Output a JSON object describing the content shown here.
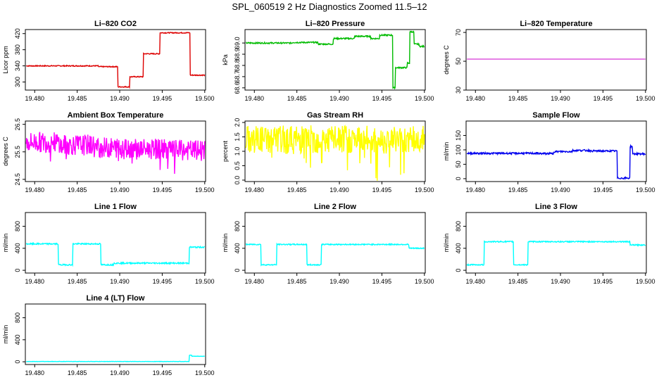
{
  "title": "SPL_060519  2 Hz Diagnostics Zoomed 11.5–12",
  "chart_data": [
    {
      "type": "line",
      "title": "Li–820 CO2",
      "ylabel": "Licor ppm",
      "color": "#dd0000",
      "xlim": [
        19.4789,
        19.5001
      ],
      "ylim": [
        280,
        430
      ],
      "xticks": [
        "19.480",
        "19.485",
        "19.490",
        "19.495",
        "19.500"
      ],
      "yticks": [
        {
          "v": 300,
          "label": "300"
        },
        {
          "v": 340,
          "label": "340"
        },
        {
          "v": 380,
          "label": "380"
        },
        {
          "v": 420,
          "label": "420"
        }
      ],
      "noise": 1.2,
      "steps": [
        {
          "x": 19.479,
          "y": 340
        },
        {
          "x": 19.4875,
          "y": 338
        },
        {
          "x": 19.4898,
          "y": 288
        },
        {
          "x": 19.4912,
          "y": 313
        },
        {
          "x": 19.4928,
          "y": 370
        },
        {
          "x": 19.4947,
          "y": 422
        },
        {
          "x": 19.4983,
          "y": 317
        }
      ]
    },
    {
      "type": "line",
      "title": "Li–820 Pressure",
      "ylabel": "kPa",
      "color": "#00bb00",
      "xlim": [
        19.4789,
        19.5001
      ],
      "ylim": [
        68.58,
        69.12
      ],
      "xticks": [
        "19.480",
        "19.485",
        "19.490",
        "19.495",
        "19.500"
      ],
      "yticks": [
        {
          "v": 68.6,
          "label": "68.6"
        },
        {
          "v": 68.7,
          "label": "68.7"
        },
        {
          "v": 68.8,
          "label": "68.8"
        },
        {
          "v": 68.9,
          "label": "68.9"
        },
        {
          "v": 69.0,
          "label": "69.0"
        }
      ],
      "noise": 0.006,
      "steps": [
        {
          "x": 19.479,
          "y": 69.0
        },
        {
          "x": 19.4845,
          "y": 69.005
        },
        {
          "x": 19.4875,
          "y": 68.99
        },
        {
          "x": 19.4893,
          "y": 69.04
        },
        {
          "x": 19.4918,
          "y": 69.06
        },
        {
          "x": 19.4937,
          "y": 69.04
        },
        {
          "x": 19.4947,
          "y": 69.07
        },
        {
          "x": 19.4963,
          "y": 68.6
        },
        {
          "x": 19.4966,
          "y": 68.78
        },
        {
          "x": 19.498,
          "y": 68.82
        },
        {
          "x": 19.4983,
          "y": 69.1
        },
        {
          "x": 19.4988,
          "y": 68.99
        },
        {
          "x": 19.4994,
          "y": 68.97
        }
      ]
    },
    {
      "type": "line",
      "title": "Li–820 Temperature",
      "ylabel": "degrees C",
      "color": "#cc00cc",
      "xlim": [
        19.4789,
        19.5001
      ],
      "ylim": [
        30,
        72
      ],
      "xticks": [
        "19.480",
        "19.485",
        "19.490",
        "19.495",
        "19.500"
      ],
      "yticks": [
        {
          "v": 30,
          "label": "30"
        },
        {
          "v": 50,
          "label": "50"
        },
        {
          "v": 70,
          "label": "70"
        }
      ],
      "noise": 0,
      "steps": [
        {
          "x": 19.479,
          "y": 51.5
        }
      ]
    },
    {
      "type": "line",
      "title": "Ambient Box Temperature",
      "ylabel": "degrees C",
      "color": "#ff00ff",
      "xlim": [
        19.4789,
        19.5001
      ],
      "ylim": [
        24.42,
        26.62
      ],
      "xticks": [
        "19.480",
        "19.485",
        "19.490",
        "19.495",
        "19.500"
      ],
      "yticks": [
        {
          "v": 24.5,
          "label": "24.5"
        },
        {
          "v": 25.5,
          "label": "25.5"
        },
        {
          "v": 26.5,
          "label": "26.5"
        }
      ],
      "noise": 0.38,
      "spikes": 0.6,
      "steps": [
        {
          "x": 19.479,
          "y": 25.85
        },
        {
          "x": 19.483,
          "y": 25.75
        },
        {
          "x": 19.487,
          "y": 25.65
        },
        {
          "x": 19.492,
          "y": 25.6
        },
        {
          "x": 19.496,
          "y": 25.55
        }
      ]
    },
    {
      "type": "line",
      "title": "Gas Stream RH",
      "ylabel": "percent",
      "color": "#ffff00",
      "xlim": [
        19.4789,
        19.5001
      ],
      "ylim": [
        -0.05,
        2.05
      ],
      "xticks": [
        "19.480",
        "19.485",
        "19.490",
        "19.495",
        "19.500"
      ],
      "yticks": [
        {
          "v": 0.0,
          "label": "0.0"
        },
        {
          "v": 0.5,
          "label": "0.5"
        },
        {
          "v": 1.0,
          "label": "1.0"
        },
        {
          "v": 1.5,
          "label": "1.5"
        },
        {
          "v": 2.0,
          "label": "2.0"
        }
      ],
      "noise": 0.5,
      "spikes": 0.9,
      "steps": [
        {
          "x": 19.479,
          "y": 1.4
        }
      ]
    },
    {
      "type": "line",
      "title": "Sample Flow",
      "ylabel": "ml/min",
      "color": "#0000ee",
      "xlim": [
        19.4789,
        19.5001
      ],
      "ylim": [
        -10,
        200
      ],
      "xticks": [
        "19.480",
        "19.485",
        "19.490",
        "19.495",
        "19.500"
      ],
      "yticks": [
        {
          "v": 0,
          "label": "0"
        },
        {
          "v": 50,
          "label": "50"
        },
        {
          "v": 100,
          "label": "100"
        },
        {
          "v": 150,
          "label": "150"
        }
      ],
      "noise": 3,
      "steps": [
        {
          "x": 19.479,
          "y": 88
        },
        {
          "x": 19.4875,
          "y": 87
        },
        {
          "x": 19.4892,
          "y": 94
        },
        {
          "x": 19.4914,
          "y": 98
        },
        {
          "x": 19.4935,
          "y": 96
        },
        {
          "x": 19.4967,
          "y": 2
        },
        {
          "x": 19.4982,
          "y": 112
        },
        {
          "x": 19.4985,
          "y": 86
        }
      ]
    },
    {
      "type": "line",
      "title": "Line 1 Flow",
      "ylabel": "ml/min",
      "color": "#00ffff",
      "xlim": [
        19.4789,
        19.5001
      ],
      "ylim": [
        -50,
        1050
      ],
      "xticks": [
        "19.480",
        "19.485",
        "19.490",
        "19.495",
        "19.500"
      ],
      "yticks": [
        {
          "v": 0,
          "label": "0"
        },
        {
          "v": 400,
          "label": "400"
        },
        {
          "v": 800,
          "label": "800"
        }
      ],
      "noise": 12,
      "steps": [
        {
          "x": 19.479,
          "y": 480
        },
        {
          "x": 19.4828,
          "y": 100
        },
        {
          "x": 19.4845,
          "y": 480
        },
        {
          "x": 19.4878,
          "y": 100
        },
        {
          "x": 19.4893,
          "y": 130
        },
        {
          "x": 19.4982,
          "y": 420
        }
      ]
    },
    {
      "type": "line",
      "title": "Line 2 Flow",
      "ylabel": "ml/min",
      "color": "#00ffff",
      "xlim": [
        19.4789,
        19.5001
      ],
      "ylim": [
        -50,
        1050
      ],
      "xticks": [
        "19.480",
        "19.485",
        "19.490",
        "19.495",
        "19.500"
      ],
      "yticks": [
        {
          "v": 0,
          "label": "0"
        },
        {
          "v": 400,
          "label": "400"
        },
        {
          "v": 800,
          "label": "800"
        }
      ],
      "noise": 10,
      "steps": [
        {
          "x": 19.479,
          "y": 470
        },
        {
          "x": 19.4808,
          "y": 100
        },
        {
          "x": 19.4826,
          "y": 470
        },
        {
          "x": 19.4862,
          "y": 100
        },
        {
          "x": 19.4879,
          "y": 470
        },
        {
          "x": 19.4982,
          "y": 400
        }
      ]
    },
    {
      "type": "line",
      "title": "Line 3 Flow",
      "ylabel": "ml/min",
      "color": "#00ffff",
      "xlim": [
        19.4789,
        19.5001
      ],
      "ylim": [
        -50,
        1050
      ],
      "xticks": [
        "19.480",
        "19.485",
        "19.490",
        "19.495",
        "19.500"
      ],
      "yticks": [
        {
          "v": 0,
          "label": "0"
        },
        {
          "v": 400,
          "label": "400"
        },
        {
          "v": 800,
          "label": "800"
        }
      ],
      "noise": 10,
      "steps": [
        {
          "x": 19.479,
          "y": 100
        },
        {
          "x": 19.481,
          "y": 520
        },
        {
          "x": 19.4845,
          "y": 100
        },
        {
          "x": 19.4862,
          "y": 520
        },
        {
          "x": 19.4982,
          "y": 460
        }
      ]
    },
    {
      "type": "line",
      "title": "Line 4 (LT) Flow",
      "ylabel": "ml/min",
      "color": "#00ffff",
      "xlim": [
        19.4789,
        19.5001
      ],
      "ylim": [
        -50,
        1050
      ],
      "xticks": [
        "19.480",
        "19.485",
        "19.490",
        "19.495",
        "19.500"
      ],
      "yticks": [
        {
          "v": 0,
          "label": "0"
        },
        {
          "v": 400,
          "label": "400"
        },
        {
          "v": 800,
          "label": "800"
        }
      ],
      "noise": 3,
      "steps": [
        {
          "x": 19.479,
          "y": 5
        },
        {
          "x": 19.4982,
          "y": 120
        },
        {
          "x": 19.4985,
          "y": 100
        }
      ]
    }
  ]
}
